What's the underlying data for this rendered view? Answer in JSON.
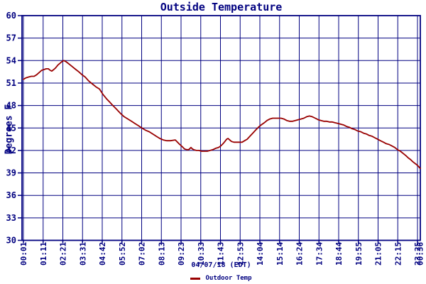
{
  "colors": {
    "axis": "#000080",
    "grid": "#000080",
    "text": "#000080",
    "line": "#990000",
    "background": "#ffffff"
  },
  "legend": {
    "label": "Outdoor Temp",
    "swatch_color": "#990000"
  },
  "chart_data": {
    "type": "line",
    "title": "Outside Temperature",
    "xlabel": "04/07/18 (EDT)",
    "ylabel": "Degrees F",
    "ylim": [
      30,
      60
    ],
    "y_tick_step": 3,
    "y_ticks": [
      60,
      57,
      54,
      51,
      48,
      45,
      42,
      39,
      36,
      33,
      30
    ],
    "grid": true,
    "legend_position": "bottom",
    "x_tick_labels": [
      "00:01",
      "01:11",
      "02:21",
      "03:31",
      "04:42",
      "05:52",
      "07:02",
      "08:13",
      "09:23",
      "10:33",
      "11:43",
      "12:53",
      "14:04",
      "15:14",
      "16:24",
      "17:34",
      "18:44",
      "19:55",
      "21:05",
      "22:15",
      "23:25"
    ],
    "x_end_label": "00:36",
    "series": [
      {
        "name": "Outdoor Temp",
        "color": "#990000",
        "points": [
          [
            "00:01",
            51.5
          ],
          [
            "00:10",
            51.7
          ],
          [
            "00:19",
            51.8
          ],
          [
            "00:29",
            51.9
          ],
          [
            "00:39",
            51.9
          ],
          [
            "00:48",
            52.1
          ],
          [
            "00:57",
            52.4
          ],
          [
            "01:06",
            52.7
          ],
          [
            "01:14",
            52.8
          ],
          [
            "01:22",
            52.9
          ],
          [
            "01:30",
            52.9
          ],
          [
            "01:36",
            52.7
          ],
          [
            "01:42",
            52.6
          ],
          [
            "01:49",
            52.8
          ],
          [
            "01:55",
            53.0
          ],
          [
            "02:04",
            53.4
          ],
          [
            "02:13",
            53.7
          ],
          [
            "02:19",
            53.9
          ],
          [
            "02:25",
            54.0
          ],
          [
            "02:31",
            53.9
          ],
          [
            "02:38",
            53.7
          ],
          [
            "02:48",
            53.4
          ],
          [
            "02:58",
            53.1
          ],
          [
            "03:08",
            52.8
          ],
          [
            "03:18",
            52.5
          ],
          [
            "03:30",
            52.1
          ],
          [
            "03:41",
            51.8
          ],
          [
            "03:53",
            51.3
          ],
          [
            "04:06",
            50.9
          ],
          [
            "04:19",
            50.5
          ],
          [
            "04:32",
            50.2
          ],
          [
            "04:44",
            49.5
          ],
          [
            "04:57",
            48.9
          ],
          [
            "05:07",
            48.5
          ],
          [
            "05:17",
            48.1
          ],
          [
            "05:33",
            47.5
          ],
          [
            "05:48",
            46.9
          ],
          [
            "06:00",
            46.5
          ],
          [
            "06:13",
            46.2
          ],
          [
            "06:26",
            45.9
          ],
          [
            "06:38",
            45.6
          ],
          [
            "06:51",
            45.3
          ],
          [
            "07:03",
            45.0
          ],
          [
            "07:16",
            44.7
          ],
          [
            "07:29",
            44.5
          ],
          [
            "07:42",
            44.2
          ],
          [
            "07:54",
            43.9
          ],
          [
            "08:07",
            43.6
          ],
          [
            "08:19",
            43.4
          ],
          [
            "08:32",
            43.3
          ],
          [
            "08:45",
            43.3
          ],
          [
            "09:02",
            43.4
          ],
          [
            "09:10",
            43.1
          ],
          [
            "09:18",
            42.8
          ],
          [
            "09:27",
            42.5
          ],
          [
            "09:35",
            42.2
          ],
          [
            "09:43",
            42.1
          ],
          [
            "09:50",
            42.1
          ],
          [
            "09:58",
            42.4
          ],
          [
            "10:03",
            42.2
          ],
          [
            "10:08",
            42.1
          ],
          [
            "10:17",
            42.0
          ],
          [
            "10:26",
            42.0
          ],
          [
            "10:36",
            41.9
          ],
          [
            "10:46",
            41.9
          ],
          [
            "10:56",
            41.9
          ],
          [
            "11:06",
            42.0
          ],
          [
            "11:16",
            42.1
          ],
          [
            "11:27",
            42.3
          ],
          [
            "11:36",
            42.4
          ],
          [
            "11:44",
            42.6
          ],
          [
            "11:52",
            42.9
          ],
          [
            "11:59",
            43.2
          ],
          [
            "12:05",
            43.5
          ],
          [
            "12:10",
            43.6
          ],
          [
            "12:16",
            43.4
          ],
          [
            "12:22",
            43.2
          ],
          [
            "12:31",
            43.1
          ],
          [
            "12:40",
            43.1
          ],
          [
            "12:50",
            43.1
          ],
          [
            "13:00",
            43.1
          ],
          [
            "13:09",
            43.3
          ],
          [
            "13:18",
            43.5
          ],
          [
            "13:28",
            43.9
          ],
          [
            "13:38",
            44.3
          ],
          [
            "13:48",
            44.7
          ],
          [
            "13:58",
            45.1
          ],
          [
            "14:08",
            45.4
          ],
          [
            "14:19",
            45.7
          ],
          [
            "14:29",
            46.0
          ],
          [
            "14:39",
            46.2
          ],
          [
            "14:49",
            46.3
          ],
          [
            "14:59",
            46.3
          ],
          [
            "15:09",
            46.3
          ],
          [
            "15:19",
            46.3
          ],
          [
            "15:29",
            46.2
          ],
          [
            "15:39",
            46.0
          ],
          [
            "15:49",
            45.9
          ],
          [
            "16:00",
            45.9
          ],
          [
            "16:10",
            46.0
          ],
          [
            "16:20",
            46.1
          ],
          [
            "16:30",
            46.2
          ],
          [
            "16:40",
            46.3
          ],
          [
            "16:50",
            46.5
          ],
          [
            "17:00",
            46.6
          ],
          [
            "17:10",
            46.5
          ],
          [
            "17:21",
            46.3
          ],
          [
            "17:31",
            46.1
          ],
          [
            "17:41",
            46.0
          ],
          [
            "17:51",
            45.9
          ],
          [
            "18:01",
            45.9
          ],
          [
            "18:11",
            45.8
          ],
          [
            "18:21",
            45.8
          ],
          [
            "18:31",
            45.7
          ],
          [
            "18:42",
            45.6
          ],
          [
            "18:52",
            45.5
          ],
          [
            "19:02",
            45.4
          ],
          [
            "19:12",
            45.2
          ],
          [
            "19:22",
            45.1
          ],
          [
            "19:32",
            44.9
          ],
          [
            "19:42",
            44.8
          ],
          [
            "19:52",
            44.6
          ],
          [
            "20:03",
            44.5
          ],
          [
            "20:13",
            44.3
          ],
          [
            "20:23",
            44.2
          ],
          [
            "20:33",
            44.0
          ],
          [
            "20:43",
            43.9
          ],
          [
            "20:53",
            43.7
          ],
          [
            "21:03",
            43.5
          ],
          [
            "21:13",
            43.3
          ],
          [
            "21:24",
            43.1
          ],
          [
            "21:34",
            42.9
          ],
          [
            "21:44",
            42.8
          ],
          [
            "21:54",
            42.6
          ],
          [
            "22:04",
            42.4
          ],
          [
            "22:14",
            42.1
          ],
          [
            "22:24",
            41.9
          ],
          [
            "22:34",
            41.6
          ],
          [
            "22:44",
            41.3
          ],
          [
            "22:52",
            41.0
          ],
          [
            "23:00",
            40.8
          ],
          [
            "23:08",
            40.5
          ],
          [
            "23:15",
            40.3
          ],
          [
            "23:22",
            40.1
          ],
          [
            "23:28",
            39.9
          ],
          [
            "23:32",
            39.7
          ],
          [
            "23:35",
            39.6
          ]
        ]
      }
    ]
  }
}
